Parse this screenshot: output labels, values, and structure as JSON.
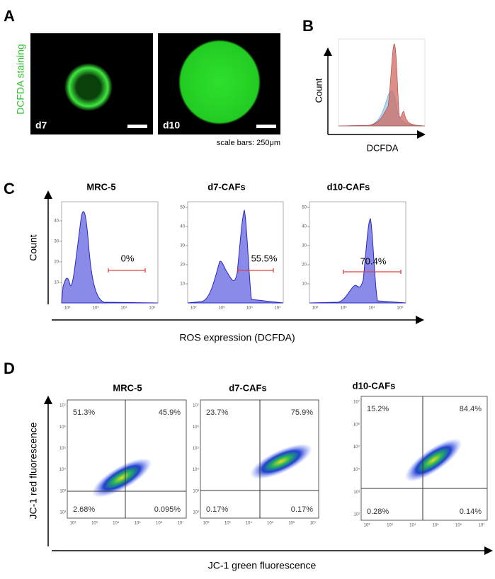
{
  "panels": {
    "A": {
      "label": "A",
      "y_label": "DCFDA staining",
      "images": [
        {
          "label": "d7"
        },
        {
          "label": "d10"
        }
      ],
      "note": "scale bars: 250μm"
    },
    "B": {
      "label": "B",
      "y_label": "Count",
      "x_label": "DCFDA"
    },
    "C": {
      "label": "C",
      "y_label": "Count",
      "x_label": "ROS expression (DCFDA)",
      "plots": [
        {
          "title": "MRC-5",
          "gate": "0%",
          "yticks": [
            10,
            20,
            30,
            40
          ]
        },
        {
          "title": "d7-CAFs",
          "gate": "55.5%",
          "yticks": [
            10,
            20,
            30,
            40,
            50
          ]
        },
        {
          "title": "d10-CAFs",
          "gate": "70.4%",
          "yticks": [
            10,
            20,
            30,
            40,
            50
          ]
        }
      ],
      "xtick_labels": [
        "10²",
        "10³",
        "10⁴",
        "10⁵"
      ]
    },
    "D": {
      "label": "D",
      "y_label": "JC-1 red fluorescence",
      "x_label": "JC-1 green fluorescence",
      "plots": [
        {
          "title": "MRC-5",
          "quadrants": [
            "51.3%",
            "45.9%",
            "2.68%",
            "0.095%"
          ]
        },
        {
          "title": "d7-CAFs",
          "quadrants": [
            "23.7%",
            "75.9%",
            "0.17%",
            "0.17%"
          ]
        },
        {
          "title": "d10-CAFs",
          "quadrants": [
            "15.2%",
            "84.4%",
            "0.28%",
            "0.14%"
          ]
        }
      ],
      "tick_labels": [
        "10²",
        "10³",
        "10⁴",
        "10⁵",
        "10⁶",
        "10⁷"
      ]
    }
  }
}
